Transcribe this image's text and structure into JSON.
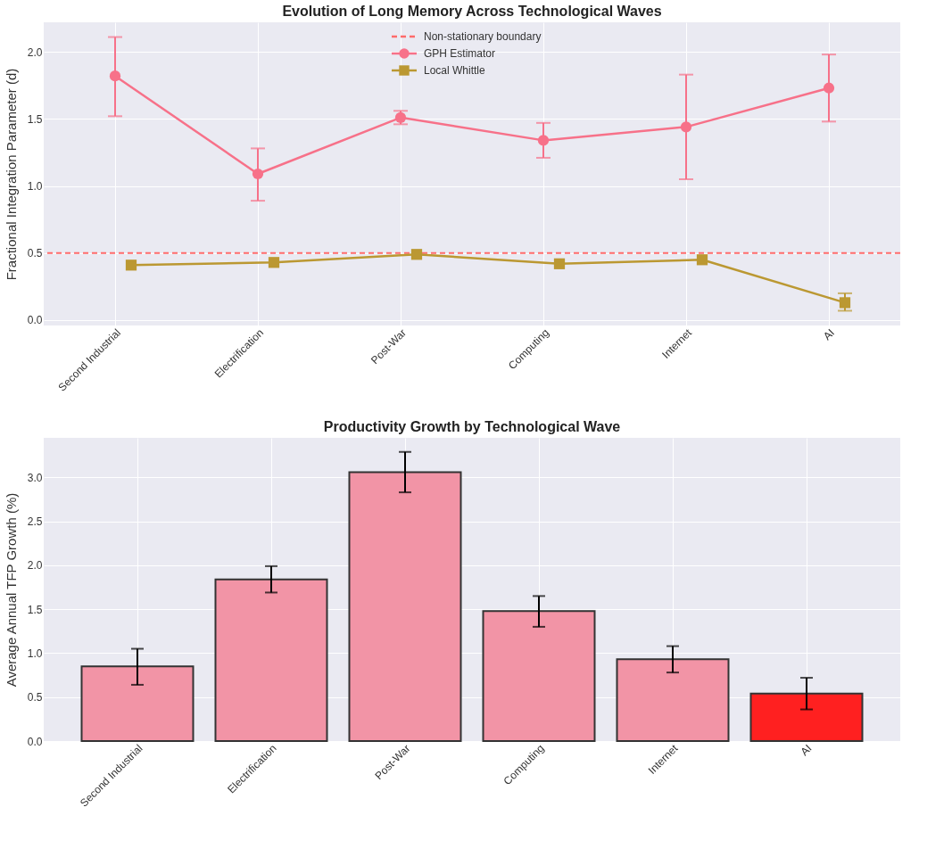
{
  "chart_data": [
    {
      "type": "line",
      "title": "Evolution of Long Memory Across Technological Waves",
      "ylabel": "Fractional Integration Parameter (d)",
      "categories": [
        "Second Industrial",
        "Electrification",
        "Post-War",
        "Computing",
        "Internet",
        "AI"
      ],
      "series": [
        {
          "name": "GPH Estimator",
          "color": "#f77189",
          "marker": "circle",
          "values": [
            1.82,
            1.09,
            1.51,
            1.34,
            1.44,
            1.73
          ],
          "errors": [
            [
              1.52,
              2.11
            ],
            [
              0.89,
              1.28
            ],
            [
              1.46,
              1.56
            ],
            [
              1.21,
              1.47
            ],
            [
              1.05,
              1.83
            ],
            [
              1.48,
              1.98
            ]
          ]
        },
        {
          "name": "Local Whittle",
          "color": "#bb9832",
          "marker": "square",
          "values": [
            0.41,
            0.43,
            0.49,
            0.42,
            0.45,
            0.13
          ],
          "errors": [
            null,
            null,
            null,
            null,
            null,
            [
              0.07,
              0.2
            ]
          ]
        }
      ],
      "ylim": [
        -0.04,
        2.22
      ],
      "yticks": [
        {
          "value": 0,
          "label": "0.0"
        },
        0.5,
        {
          "value": 1,
          "label": "1.0"
        },
        1.5,
        {
          "value": 2,
          "label": "2.0"
        }
      ],
      "ref_lines": [
        {
          "axis": "y",
          "value": 0.5,
          "label": "Non-stationary boundary",
          "color": "#ff6b6b",
          "line_style": "dashed"
        }
      ],
      "grid": true,
      "legend": "top"
    },
    {
      "type": "bar",
      "title": "Productivity Growth by Technological Wave",
      "ylabel": "Average Annual TFP Growth (%)",
      "categories": [
        "Second Industrial",
        "Electrification",
        "Post-War",
        "Computing",
        "Internet",
        "AI"
      ],
      "values": [
        0.85,
        1.84,
        3.06,
        1.48,
        0.93,
        0.54
      ],
      "errors": [
        [
          0.64,
          1.05
        ],
        [
          1.69,
          1.99
        ],
        [
          2.83,
          3.29
        ],
        [
          1.3,
          1.65
        ],
        [
          0.78,
          1.08
        ],
        [
          0.36,
          0.72
        ]
      ],
      "colors": [
        "#f294a6",
        "#f294a6",
        "#f294a6",
        "#f294a6",
        "#f294a6",
        "#ff2020"
      ],
      "ylim": [
        0,
        3.45
      ],
      "yticks": [
        {
          "value": 0,
          "label": "0.0"
        },
        0.5,
        {
          "value": 1,
          "label": "1.0"
        },
        1.5,
        {
          "value": 2,
          "label": "2.0"
        },
        2.5,
        {
          "value": 3,
          "label": "3.0"
        }
      ],
      "grid": true
    }
  ]
}
